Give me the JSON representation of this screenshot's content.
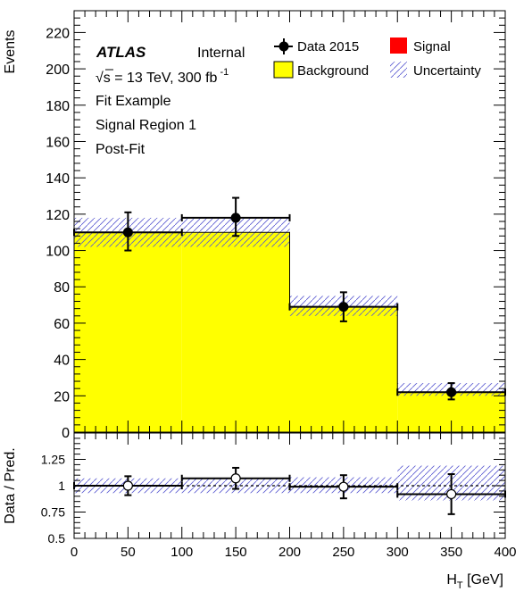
{
  "chart_data": [
    {
      "type": "bar",
      "ylabel": "Events",
      "ylim": [
        0,
        232
      ],
      "xlim": [
        0,
        400
      ],
      "grid": false,
      "legend_position": "top-right",
      "bin_edges": [
        0,
        100,
        200,
        300,
        400
      ],
      "series": [
        {
          "name": "Background",
          "values": [
            110,
            110,
            69,
            22
          ],
          "color": "#ffff00"
        },
        {
          "name": "Signal",
          "values": [
            0,
            0,
            0,
            0
          ],
          "color": "#ff0000"
        }
      ],
      "uncertainty": {
        "name": "Uncertainty",
        "lower": [
          102,
          102,
          64,
          20
        ],
        "upper": [
          118,
          118,
          75,
          27
        ]
      },
      "data": {
        "name": "Data 2015",
        "x": [
          50,
          150,
          250,
          350
        ],
        "y": [
          110,
          118,
          69,
          22
        ],
        "y_err_low": [
          10,
          10,
          8,
          4
        ],
        "y_err_high": [
          11,
          11,
          8,
          5
        ]
      },
      "y_ticks": [
        0,
        20,
        40,
        60,
        80,
        100,
        120,
        140,
        160,
        180,
        200,
        220
      ],
      "y_tick_labels": [
        "0",
        "20",
        "40",
        "60",
        "80",
        "100",
        "120",
        "140",
        "160",
        "180",
        "200",
        "220"
      ],
      "annotations": {
        "atlas": "ATLAS",
        "status": "Internal",
        "energy": "√s = 13 TeV, 300 fb",
        "energy_sup": "-1",
        "line1": "Fit Example",
        "line2": "Signal Region 1",
        "line3": "Post-Fit"
      }
    },
    {
      "type": "scatter",
      "ylabel": "Data / Pred.",
      "xlabel_main": "H",
      "xlabel_sub": "T",
      "xlabel_unit": " [GeV]",
      "xlim": [
        0,
        400
      ],
      "ylim": [
        0.5,
        1.5
      ],
      "reference_line": 1,
      "bin_edges": [
        0,
        100,
        200,
        300,
        400
      ],
      "ratio": {
        "x": [
          50,
          150,
          250,
          350
        ],
        "y": [
          1.0,
          1.07,
          0.99,
          0.92
        ],
        "err": [
          0.09,
          0.1,
          0.11,
          0.19
        ]
      },
      "uncertainty": {
        "lower": [
          0.93,
          0.93,
          0.93,
          0.86
        ],
        "upper": [
          1.07,
          1.07,
          1.08,
          1.19
        ]
      },
      "x_ticks": [
        0,
        50,
        100,
        150,
        200,
        250,
        300,
        350,
        400
      ],
      "x_tick_labels": [
        "0",
        "50",
        "100",
        "150",
        "200",
        "250",
        "300",
        "350",
        "400"
      ],
      "y_ticks": [
        0.5,
        0.75,
        1,
        1.25
      ],
      "y_tick_labels": [
        "0.5",
        "0.75",
        "1",
        "1.25"
      ]
    }
  ]
}
